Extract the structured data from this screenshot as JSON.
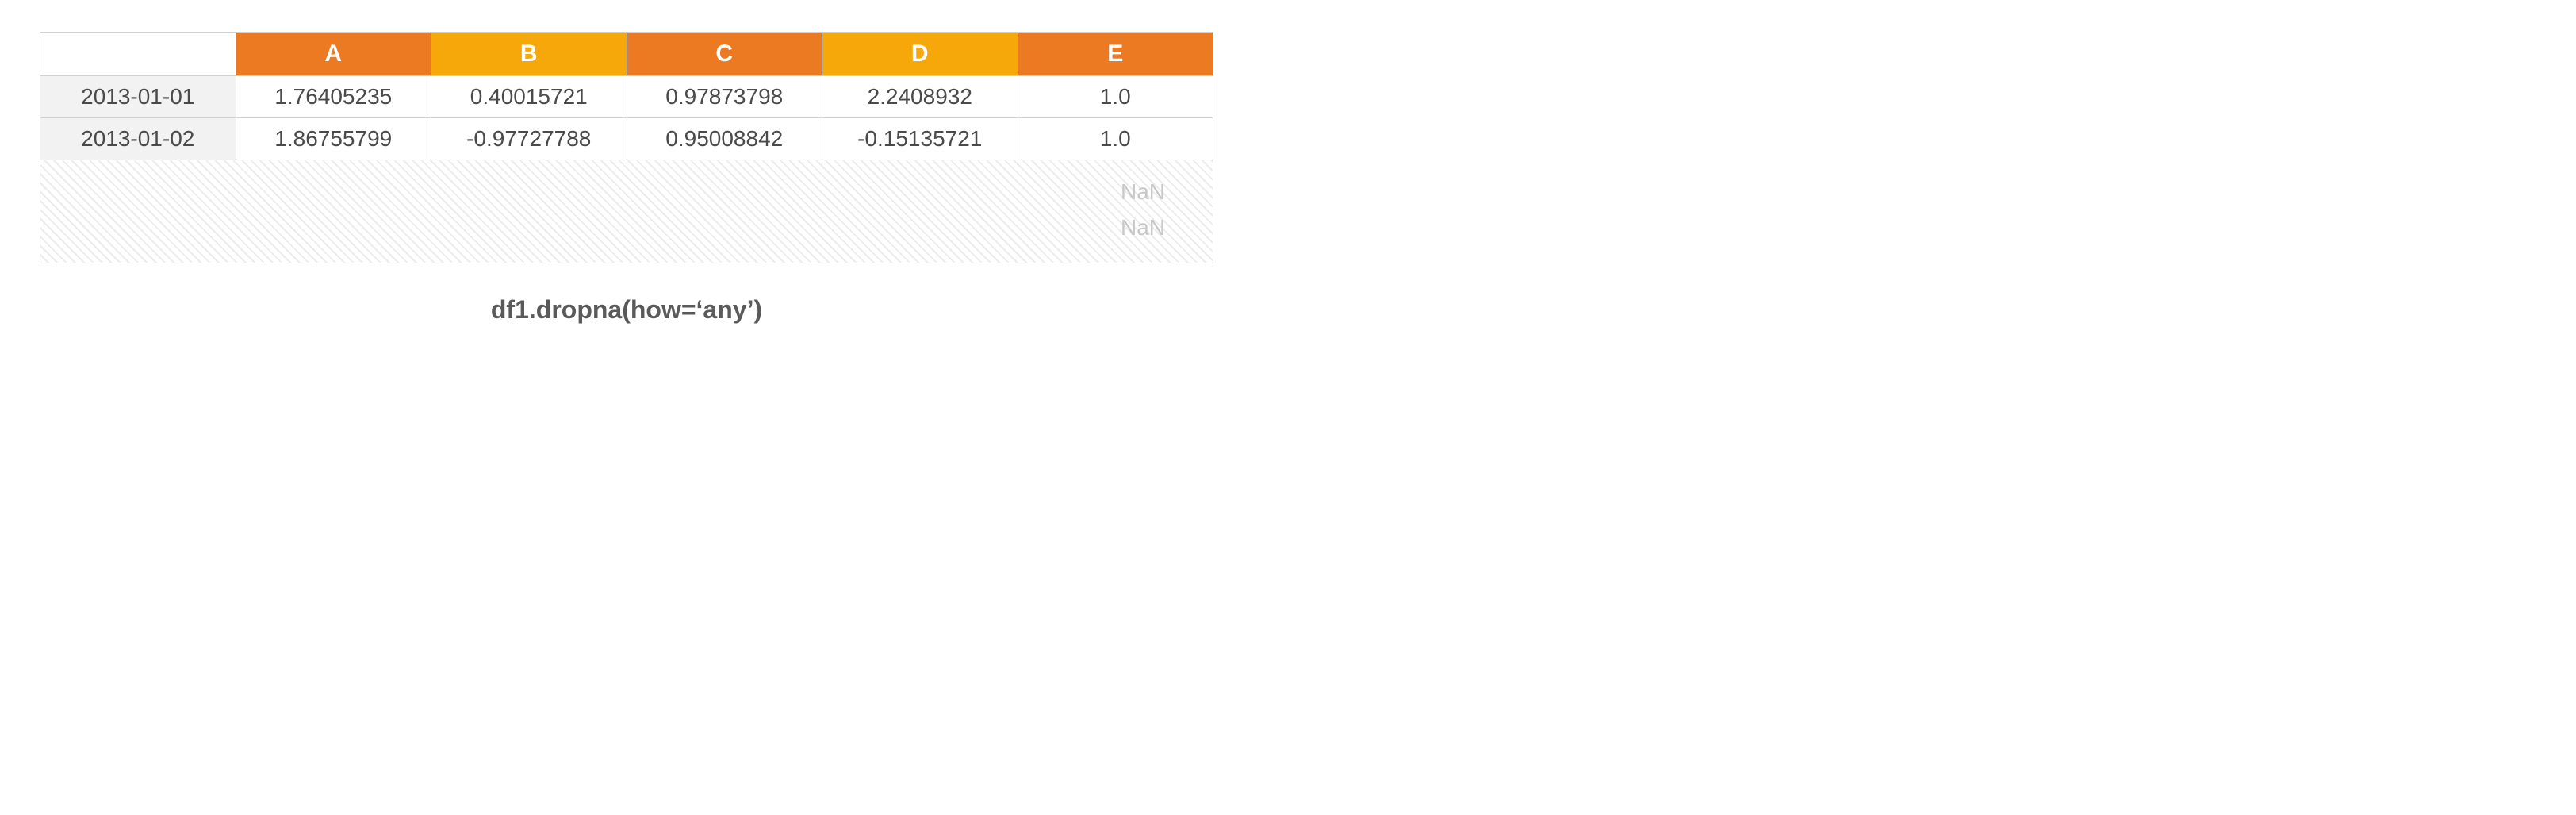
{
  "table": {
    "columns": [
      {
        "label": "A",
        "bg": "#ec7a23"
      },
      {
        "label": "B",
        "bg": "#f6a70a"
      },
      {
        "label": "C",
        "bg": "#ec7a23"
      },
      {
        "label": "D",
        "bg": "#f6a70a"
      },
      {
        "label": "E",
        "bg": "#ec7a23"
      }
    ],
    "index_bg": "#f2f2f2",
    "header_text_color": "#ffffff",
    "cell_text_color": "#4a4a4a",
    "border_color": "#d0d0d0",
    "rows": [
      {
        "index": "2013-01-01",
        "values": [
          "1.76405235",
          "0.40015721",
          "0.97873798",
          "2.2408932",
          "1.0"
        ]
      },
      {
        "index": "2013-01-02",
        "values": [
          "1.86755799",
          "-0.97727788",
          "0.95008842",
          "-0.15135721",
          "1.0"
        ]
      }
    ],
    "dropped": {
      "hatch_colors": [
        "#ffffff",
        "#ececec"
      ],
      "nan_labels": [
        "NaN",
        "NaN"
      ],
      "nan_color": "#c8c8c8"
    }
  },
  "caption": "df1.dropna(how=‘any’)"
}
